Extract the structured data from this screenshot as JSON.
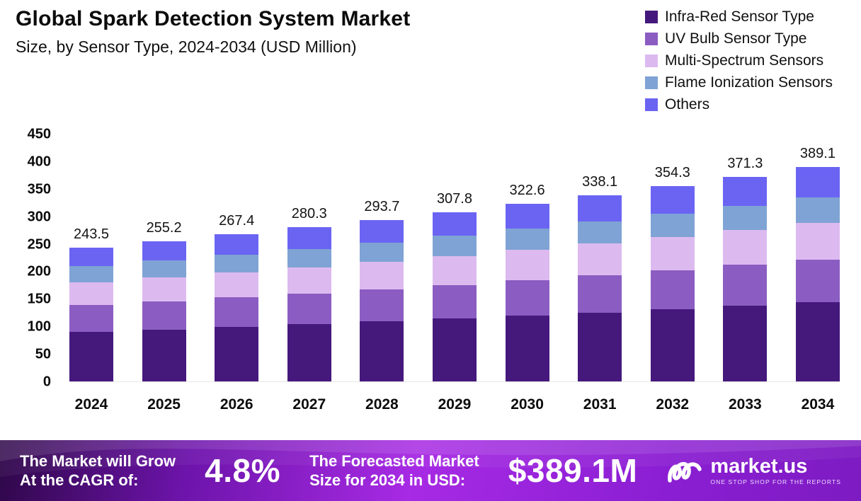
{
  "header": {
    "title": "Global Spark Detection System Market",
    "subtitle": "Size, by Sensor Type, 2024-2034 (USD Million)"
  },
  "chart_data": {
    "type": "bar",
    "stacked": true,
    "title": "Global Spark Detection System Market",
    "subtitle": "Size, by Sensor Type, 2024-2034 (USD Million)",
    "xlabel": "",
    "ylabel": "",
    "ylim": [
      0,
      450
    ],
    "yticks": [
      0,
      50,
      100,
      150,
      200,
      250,
      300,
      350,
      400,
      450
    ],
    "grid": false,
    "legend_position": "top-right",
    "categories": [
      "2024",
      "2025",
      "2026",
      "2027",
      "2028",
      "2029",
      "2030",
      "2031",
      "2032",
      "2033",
      "2034"
    ],
    "totals": [
      243.5,
      255.2,
      267.4,
      280.3,
      293.7,
      307.8,
      322.6,
      338.1,
      354.3,
      371.3,
      389.1
    ],
    "series": [
      {
        "name": "Infra-Red Sensor Type",
        "color": "#45187c",
        "values": [
          90.1,
          94.4,
          98.9,
          103.7,
          108.7,
          113.9,
          119.4,
          125.1,
          131.1,
          137.4,
          144.0
        ]
      },
      {
        "name": "UV Bulb Sensor Type",
        "color": "#8b5cc1",
        "values": [
          48.7,
          51.0,
          53.5,
          56.1,
          58.7,
          61.6,
          64.5,
          67.6,
          70.9,
          74.3,
          77.8
        ]
      },
      {
        "name": "Multi-Spectrum Sensors",
        "color": "#dcbaf0",
        "values": [
          41.4,
          43.4,
          45.5,
          47.7,
          49.9,
          52.3,
          54.8,
          57.5,
          60.2,
          63.1,
          66.1
        ]
      },
      {
        "name": "Flame Ionization Sensors",
        "color": "#7fa3d4",
        "values": [
          29.2,
          30.6,
          32.1,
          33.6,
          35.2,
          36.9,
          38.7,
          40.6,
          42.5,
          44.6,
          46.7
        ]
      },
      {
        "name": "Others",
        "color": "#6b64f3",
        "values": [
          34.1,
          35.8,
          37.4,
          39.2,
          41.2,
          43.1,
          45.2,
          47.3,
          49.6,
          51.9,
          54.5
        ]
      }
    ]
  },
  "footer": {
    "cagr_label_line1": "The Market will Grow",
    "cagr_label_line2": "At the CAGR of:",
    "cagr_value": "4.8%",
    "forecast_label_line1": "The Forecasted Market",
    "forecast_label_line2": "Size for 2034 in USD:",
    "forecast_value": "$389.1M",
    "brand_name": "market.us",
    "brand_tagline": "ONE STOP SHOP FOR THE REPORTS"
  }
}
